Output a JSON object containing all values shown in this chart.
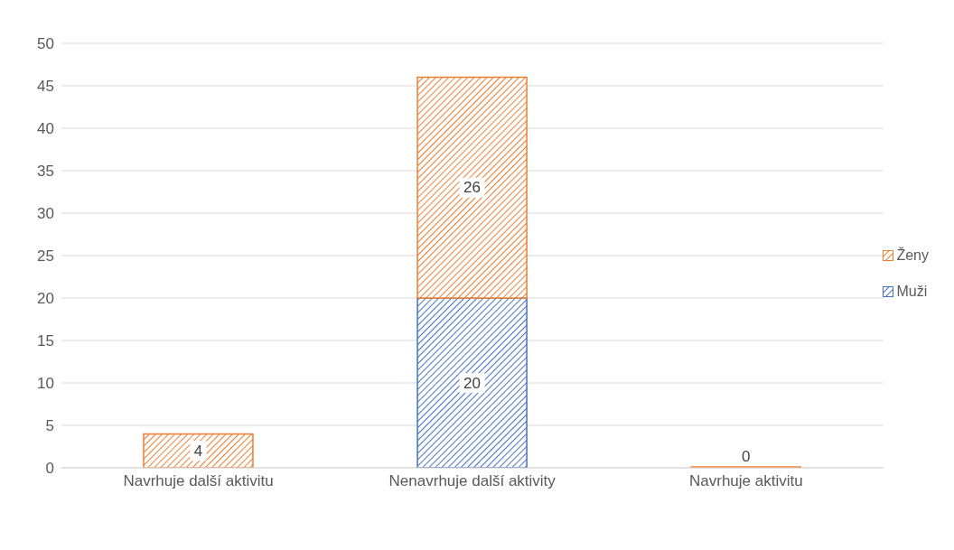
{
  "chart_data": {
    "type": "bar",
    "stacked": true,
    "categories": [
      "Navrhuje další aktivitu",
      "Nenavrhuje další aktivity",
      "Navrhuje aktivitu"
    ],
    "series": [
      {
        "name": "Muži",
        "color": "#4472c4",
        "values": [
          0,
          20,
          0
        ],
        "value_labels": [
          null,
          "20",
          null
        ]
      },
      {
        "name": "Ženy",
        "color": "#ed7d31",
        "values": [
          4,
          26,
          0
        ],
        "value_labels": [
          "4",
          "26",
          "0"
        ]
      }
    ],
    "ylim": [
      0,
      50
    ],
    "yticks": [
      0,
      5,
      10,
      15,
      20,
      25,
      30,
      35,
      40,
      45,
      50
    ],
    "grid": "y",
    "legend": "right"
  }
}
